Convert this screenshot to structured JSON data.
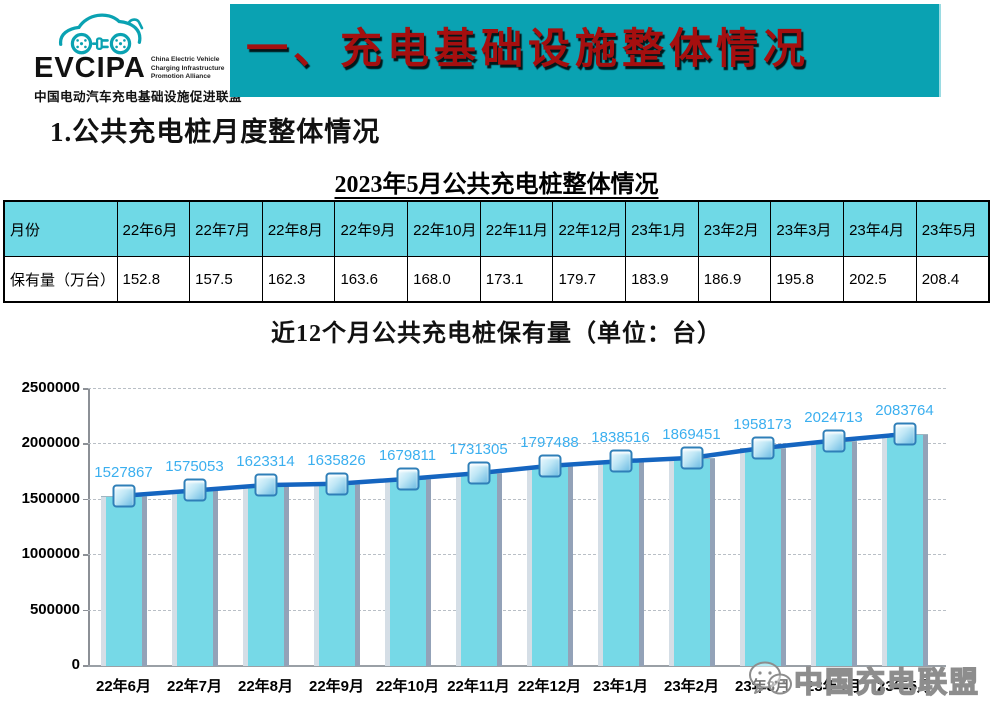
{
  "logo": {
    "acronym": "EVCIPA",
    "subtitle_lines": [
      "China Electric Vehicle",
      "Charging Infrastructure",
      "Promotion Alliance"
    ],
    "chinese_name": "中国电动汽车充电基础设施促进联盟",
    "brand_color": "#0AA2B2"
  },
  "banner": {
    "title": "一、充电基础设施整体情况",
    "bg_color": "#0AA2B2",
    "title_color": "#A50F0F"
  },
  "section_heading": "1.公共充电桩月度整体情况",
  "table": {
    "title": "2023年5月公共充电桩整体情况",
    "header_bg": "#6FD9E6",
    "row_label_header": "月份",
    "row_label": "保有量（万台）",
    "months": [
      "22年6月",
      "22年7月",
      "22年8月",
      "22年9月",
      "22年10月",
      "22年11月",
      "22年12月",
      "23年1月",
      "23年2月",
      "23年3月",
      "23年4月",
      "23年5月"
    ],
    "values": [
      "152.8",
      "157.5",
      "162.3",
      "163.6",
      "168.0",
      "173.1",
      "179.7",
      "183.9",
      "186.9",
      "195.8",
      "202.5",
      "208.4"
    ]
  },
  "chart_data": {
    "type": "bar",
    "overlay": "line",
    "title": "近12个月公共充电桩保有量（单位：台）",
    "categories": [
      "22年6月",
      "22年7月",
      "22年8月",
      "22年9月",
      "22年10月",
      "22年11月",
      "22年12月",
      "23年1月",
      "23年2月",
      "23年3月",
      "23年4月",
      "23年5月"
    ],
    "values": [
      1527867,
      1575053,
      1623314,
      1635826,
      1679811,
      1731305,
      1797488,
      1838516,
      1869451,
      1958173,
      2024713,
      2083764
    ],
    "xlabel": "",
    "ylabel": "",
    "ylim": [
      0,
      2500000
    ],
    "yticks": [
      0,
      500000,
      1000000,
      1500000,
      2000000,
      2500000
    ],
    "grid": "dashed-horizontal",
    "legend": "none",
    "data_labels": true,
    "colors": {
      "bar_fill": "#76D9E7",
      "bar_edge_light": "#D5DEE6",
      "bar_edge_dark": "#93A2B8",
      "line": "#1565C0",
      "marker_border": "#2F7FB8",
      "data_label": "#3BAFEF"
    }
  },
  "watermark": {
    "text": "中国充电联盟",
    "icon": "wechat-icon"
  }
}
